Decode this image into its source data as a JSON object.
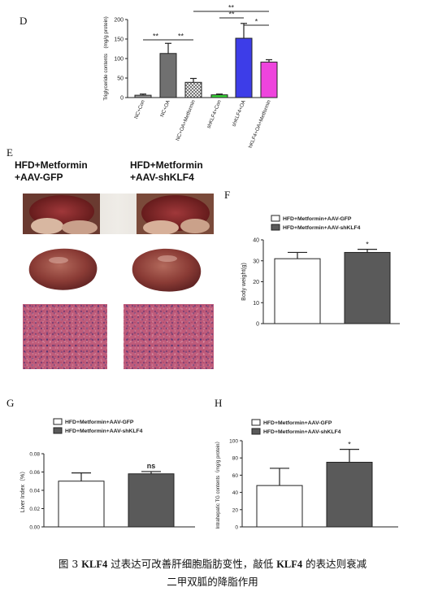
{
  "panels": {
    "D": "D",
    "E": "E",
    "F": "F",
    "G": "G",
    "H": "H"
  },
  "chart_data": [
    {
      "panel": "D",
      "type": "bar",
      "ylabel": "Triglyceride contents　(mg/g protein)",
      "ylim": [
        0,
        200
      ],
      "yticks": [
        "0",
        "50",
        "100",
        "150",
        "200"
      ],
      "categories": [
        "NC+Con",
        "NC+OA",
        "NC+OA+Metformin",
        "shKLF4+Con",
        "shKLF4+OA",
        "shKLF4+OA+Metformin"
      ],
      "values": [
        6,
        113,
        39,
        7,
        152,
        91
      ],
      "errors": [
        3,
        26,
        10,
        2,
        38,
        6
      ],
      "colors": [
        "#9a9a9a",
        "#707070",
        "#d0d0d0",
        "#38d838",
        "#3d3de8",
        "#ee44dd"
      ],
      "hatched": [
        false,
        false,
        true,
        false,
        false,
        false
      ],
      "significance": [
        "**",
        "**",
        "**",
        "**",
        "*"
      ]
    },
    {
      "panel": "F",
      "type": "bar",
      "ylabel": "Body weight(g)",
      "ylim": [
        0,
        40
      ],
      "yticks": [
        "0",
        "10",
        "20",
        "30",
        "40"
      ],
      "legend": [
        "HFD+Metformin+AAV-GFP",
        "HFD+Metformin+AAV-shKLF4"
      ],
      "values": [
        31,
        34
      ],
      "errors": [
        3,
        1.5
      ],
      "colors": [
        "#ffffff",
        "#5a5a5a"
      ],
      "annotation": "*"
    },
    {
      "panel": "G",
      "type": "bar",
      "ylabel": "Liver Index（%）",
      "ylim": [
        0,
        0.08
      ],
      "yticks": [
        "0.00",
        "0.02",
        "0.04",
        "0.06",
        "0.08"
      ],
      "legend": [
        "HFD+Metformin+AAV-GFP",
        "HFD+Metformin+AAV-shKLF4"
      ],
      "values": [
        0.05,
        0.058
      ],
      "errors": [
        0.009,
        0.0025
      ],
      "colors": [
        "#ffffff",
        "#5a5a5a"
      ],
      "annotation": "ns"
    },
    {
      "panel": "H",
      "type": "bar",
      "ylabel": "Intrahepatic TG contents（mg/g protein）",
      "ylim": [
        0,
        100
      ],
      "yticks": [
        "0",
        "20",
        "40",
        "60",
        "80",
        "100"
      ],
      "legend": [
        "HFD+Metformin+AAV-GFP",
        "HFD+Metformin+AAV-shKLF4"
      ],
      "values": [
        48,
        75
      ],
      "errors": [
        20,
        15
      ],
      "colors": [
        "#ffffff",
        "#5a5a5a"
      ],
      "annotation": "*"
    }
  ],
  "panel_e": {
    "left_title": "HFD+Metformin\n+AAV-GFP",
    "right_title": "HFD+Metformin\n+AAV-shKLF4"
  },
  "caption": {
    "prefix": "图 3 ",
    "gene1": "KLF4",
    "mid": " 过表达可改善肝细胞脂肪变性，敲低 ",
    "gene2": "KLF4",
    "suffix": " 的表达则衰减",
    "line2": "二甲双胍的降脂作用"
  }
}
